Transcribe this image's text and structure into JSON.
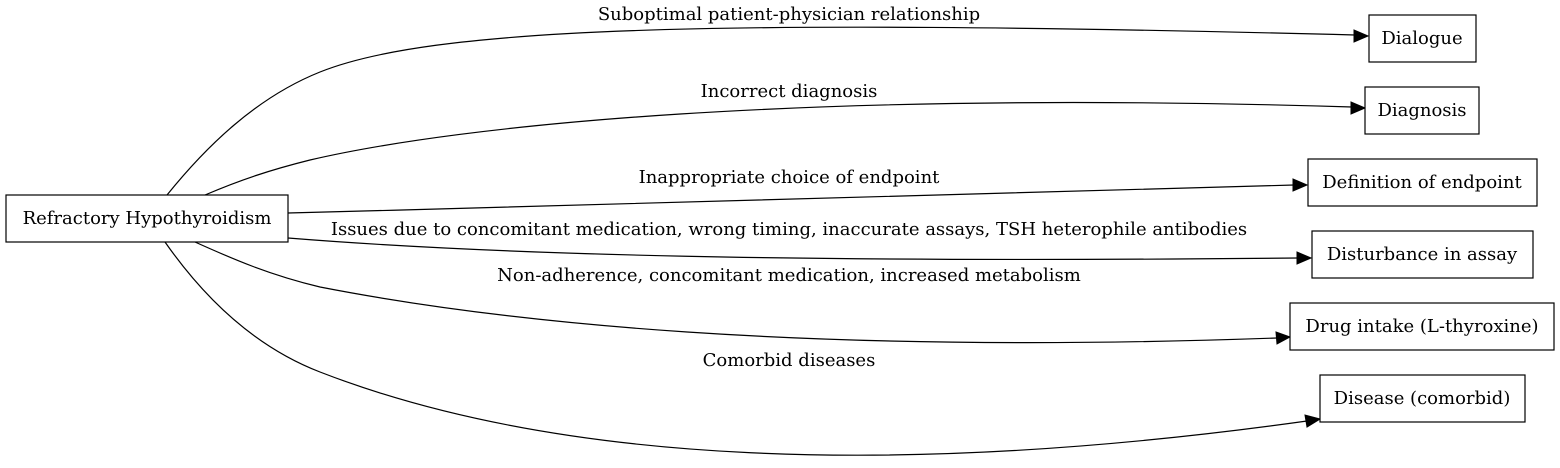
{
  "diagram": {
    "root": {
      "id": "root",
      "label": "Refractory Hypothyroidism"
    },
    "targets": [
      {
        "id": "dialogue",
        "label": "Dialogue"
      },
      {
        "id": "diagnosis",
        "label": "Diagnosis"
      },
      {
        "id": "endpoint",
        "label": "Definition of endpoint"
      },
      {
        "id": "assay",
        "label": "Disturbance in assay"
      },
      {
        "id": "drug",
        "label": "Drug intake (L-thyroxine)"
      },
      {
        "id": "disease",
        "label": "Disease (comorbid)"
      }
    ],
    "edges": [
      {
        "from": "root",
        "to": "dialogue",
        "label": "Suboptimal patient-physician relationship"
      },
      {
        "from": "root",
        "to": "diagnosis",
        "label": "Incorrect diagnosis"
      },
      {
        "from": "root",
        "to": "endpoint",
        "label": "Inappropriate choice of endpoint"
      },
      {
        "from": "root",
        "to": "assay",
        "label": "Issues due to concomitant medication, wrong timing, inaccurate assays, TSH heterophile antibodies"
      },
      {
        "from": "root",
        "to": "drug",
        "label": "Non-adherence, concomitant medication, increased metabolism"
      },
      {
        "from": "root",
        "to": "disease",
        "label": "Comorbid diseases"
      }
    ]
  }
}
